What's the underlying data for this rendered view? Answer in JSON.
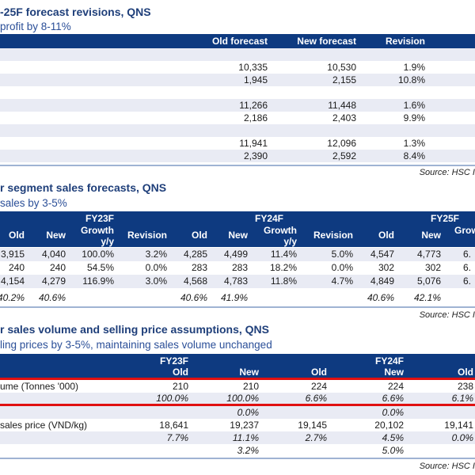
{
  "t1": {
    "title": "-25F forecast revisions, QNS",
    "subtitle": " profit by 8-11%",
    "headers": [
      "Old forecast",
      "New forecast",
      "Revision"
    ],
    "rows": [
      [
        "10,335",
        "10,530",
        "1.9%"
      ],
      [
        "1,945",
        "2,155",
        "10.8%"
      ],
      [
        "11,266",
        "11,448",
        "1.6%"
      ],
      [
        "2,186",
        "2,403",
        "9.9%"
      ],
      [
        "11,941",
        "12,096",
        "1.3%"
      ],
      [
        "2,390",
        "2,592",
        "8.4%"
      ]
    ],
    "source": "Source: HSC I"
  },
  "t2": {
    "title": "r segment sales forecasts, QNS",
    "subtitle": " sales by 3-5%",
    "groups": [
      "FY23F",
      "FY24F",
      "FY25F"
    ],
    "headers": [
      "Old",
      "New",
      "Growth",
      "y/y",
      "Revision",
      "Old",
      "New",
      "Growth",
      "y/y",
      "Revision",
      "Old",
      "New",
      "Grow"
    ],
    "rows": [
      [
        "3,915",
        "4,040",
        "100.0%",
        "3.2%",
        "4,285",
        "4,499",
        "11.4%",
        "5.0%",
        "4,547",
        "4,773",
        "6."
      ],
      [
        "240",
        "240",
        "54.5%",
        "0.0%",
        "283",
        "283",
        "18.2%",
        "0.0%",
        "302",
        "302",
        "6."
      ],
      [
        "4,154",
        "4,279",
        "116.9%",
        "3.0%",
        "4,568",
        "4,783",
        "11.8%",
        "4.7%",
        "4,849",
        "5,076",
        "6."
      ]
    ],
    "margin_row": [
      "40.2%",
      "40.6%",
      "40.6%",
      "41.9%",
      "40.6%",
      "42.1%"
    ],
    "source": "Source: HSC I"
  },
  "t3": {
    "title": "r sales volume and selling price assumptions, QNS",
    "subtitle": "ling prices by 3-5%, maintaining sales volume unchanged",
    "groups": [
      "FY23F",
      "FY24F"
    ],
    "headers": [
      "Old",
      "New",
      "Old",
      "New",
      "Old"
    ],
    "rows": [
      {
        "label": "ume (Tonnes '000)",
        "values": [
          "210",
          "210",
          "224",
          "224",
          "238"
        ],
        "italic": false
      },
      {
        "label": "",
        "values": [
          "100.0%",
          "100.0%",
          "6.6%",
          "6.6%",
          "6.1%"
        ],
        "italic": true
      },
      {
        "label": "",
        "values": [
          "",
          "0.0%",
          "",
          "0.0%",
          ""
        ],
        "italic": true
      },
      {
        "label": "sales price (VND/kg)",
        "values": [
          "18,641",
          "19,237",
          "19,145",
          "20,102",
          "19,141"
        ],
        "italic": false
      },
      {
        "label": "",
        "values": [
          "7.7%",
          "11.1%",
          "2.7%",
          "4.5%",
          "0.0%"
        ],
        "italic": true
      },
      {
        "label": "",
        "values": [
          "",
          "3.2%",
          "",
          "5.0%",
          ""
        ],
        "italic": true
      }
    ],
    "source": "Source: HSC I"
  },
  "colors": {
    "header": "#0e3a80",
    "title": "#1f3f7a",
    "stripe": "#e9ebf4",
    "red": "#e01010"
  }
}
